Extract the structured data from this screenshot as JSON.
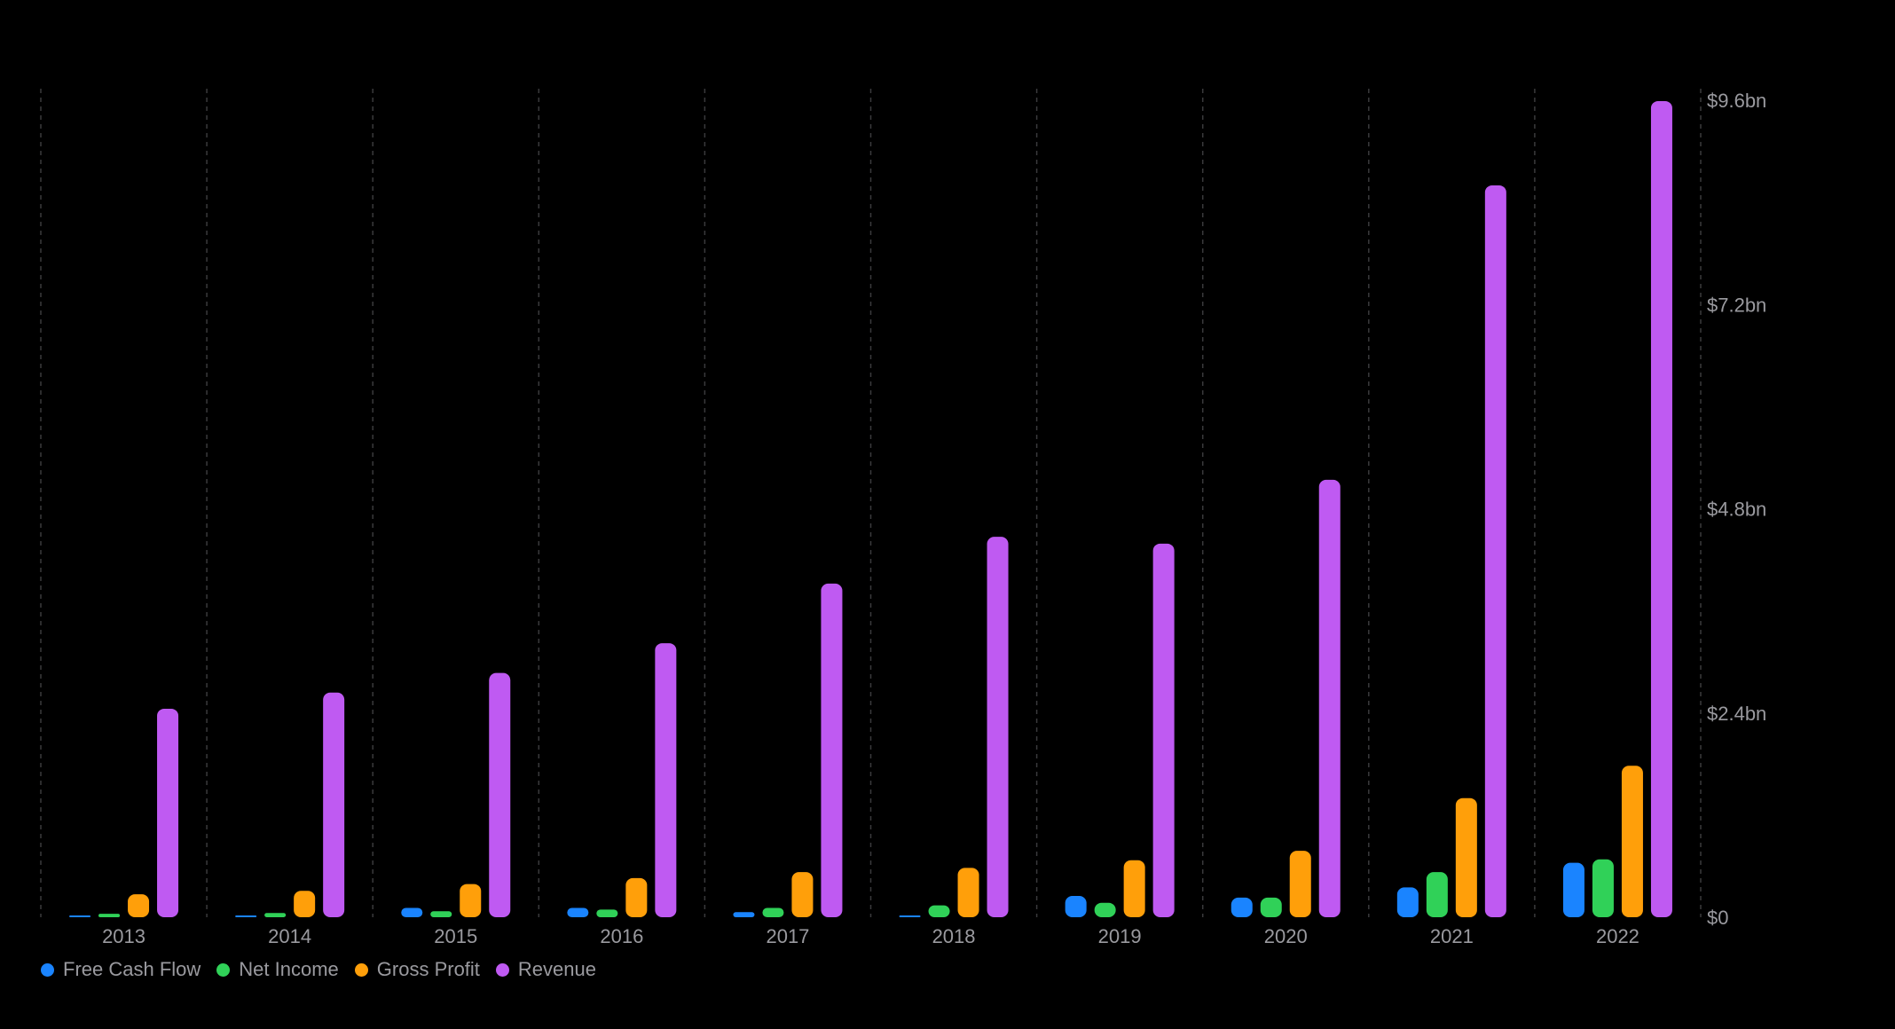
{
  "chart_data": {
    "type": "bar",
    "title": "",
    "xlabel": "",
    "ylabel": "",
    "categories": [
      "2013",
      "2014",
      "2015",
      "2016",
      "2017",
      "2018",
      "2019",
      "2020",
      "2021",
      "2022"
    ],
    "series": [
      {
        "name": "Free Cash Flow",
        "color": "#1a84ff",
        "values": [
          0.01,
          0.02,
          0.11,
          0.11,
          0.06,
          0.02,
          0.25,
          0.23,
          0.35,
          0.64
        ]
      },
      {
        "name": "Net Income",
        "color": "#30d158",
        "values": [
          0.04,
          0.05,
          0.07,
          0.09,
          0.11,
          0.14,
          0.17,
          0.23,
          0.53,
          0.68
        ]
      },
      {
        "name": "Gross Profit",
        "color": "#ff9f0a",
        "values": [
          0.27,
          0.31,
          0.39,
          0.46,
          0.53,
          0.58,
          0.67,
          0.78,
          1.4,
          1.78
        ]
      },
      {
        "name": "Revenue",
        "color": "#bf5af2",
        "values": [
          2.45,
          2.64,
          2.87,
          3.22,
          3.92,
          4.47,
          4.39,
          5.14,
          8.6,
          9.59
        ]
      }
    ],
    "y_ticks": [
      {
        "value": 0,
        "label": "$0"
      },
      {
        "value": 2.4,
        "label": "$2.4bn"
      },
      {
        "value": 4.8,
        "label": "$4.8bn"
      },
      {
        "value": 7.2,
        "label": "$7.2bn"
      },
      {
        "value": 9.6,
        "label": "$9.6bn"
      }
    ],
    "ylim": [
      0,
      9.6
    ],
    "grid": "vertical dashed separators",
    "legend": "bottom-left",
    "y_axis_position": "right"
  }
}
